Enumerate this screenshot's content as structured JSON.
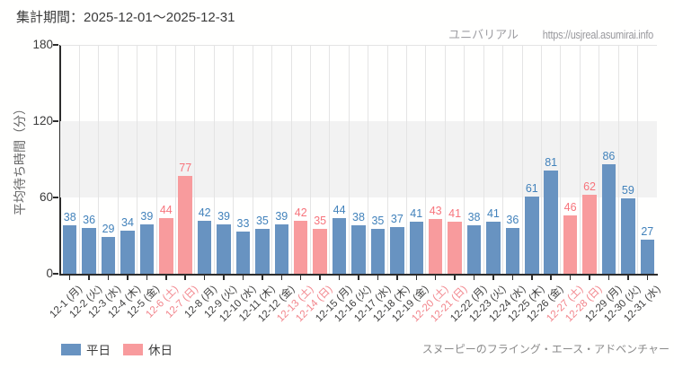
{
  "header": {
    "period_label": "集計期間：2025-12-01～2025-12-31"
  },
  "watermark": {
    "brand": "ユニバリアル",
    "url": "https://usjreal.asumirai.info"
  },
  "footer": {
    "attraction": "スヌーピーのフライング・エース・アドベンチャー"
  },
  "chart_data": {
    "type": "bar",
    "title": "",
    "xlabel": "",
    "ylabel": "平均待ち時間（分）",
    "ylim": [
      0,
      180
    ],
    "yticks": [
      0,
      60,
      120,
      180
    ],
    "grid": "vertical-light, shaded band 60-120",
    "legend_position": "bottom-left",
    "categories": [
      "12-1 (月)",
      "12-2 (火)",
      "12-3 (水)",
      "12-4 (木)",
      "12-5 (金)",
      "12-6 (土)",
      "12-7 (日)",
      "12-8 (月)",
      "12-9 (火)",
      "12-10 (水)",
      "12-11 (木)",
      "12-12 (金)",
      "12-13 (土)",
      "12-14 (日)",
      "12-15 (月)",
      "12-16 (火)",
      "12-17 (水)",
      "12-18 (木)",
      "12-19 (金)",
      "12-20 (土)",
      "12-21 (日)",
      "12-22 (月)",
      "12-23 (火)",
      "12-24 (水)",
      "12-25 (木)",
      "12-26 (金)",
      "12-27 (土)",
      "12-28 (日)",
      "12-29 (月)",
      "12-30 (火)",
      "12-31 (水)"
    ],
    "values": [
      38,
      36,
      29,
      34,
      39,
      44,
      77,
      42,
      39,
      33,
      35,
      39,
      42,
      35,
      44,
      38,
      35,
      37,
      41,
      43,
      41,
      38,
      41,
      36,
      61,
      81,
      46,
      62,
      86,
      59,
      27
    ],
    "day_types": [
      "weekday",
      "weekday",
      "weekday",
      "weekday",
      "weekday",
      "holiday",
      "holiday",
      "weekday",
      "weekday",
      "weekday",
      "weekday",
      "weekday",
      "holiday",
      "holiday",
      "weekday",
      "weekday",
      "weekday",
      "weekday",
      "weekday",
      "holiday",
      "holiday",
      "weekday",
      "weekday",
      "weekday",
      "weekday",
      "weekday",
      "holiday",
      "holiday",
      "weekday",
      "weekday",
      "weekday"
    ],
    "legend": [
      {
        "label": "平日",
        "type": "weekday"
      },
      {
        "label": "休日",
        "type": "holiday"
      }
    ],
    "colors": {
      "weekday_bar": "#6893c1",
      "holiday_bar": "#f89b9d",
      "weekday_value_label": "#4282bb",
      "holiday_value_label": "#f7747c",
      "weekday_tick_label": "#3f3f3f",
      "holiday_tick_label": "#f2858c",
      "band": "#f2f2f2",
      "gridline": "#e4e4e4",
      "axis": "#2c2c2c"
    }
  }
}
